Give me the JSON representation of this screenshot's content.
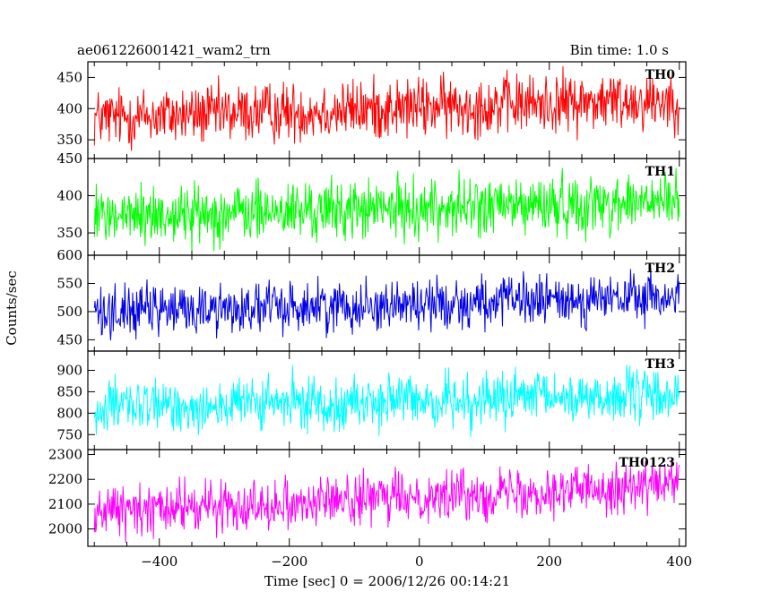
{
  "chart_data": {
    "type": "line",
    "title": "ae061226001421_wam2_trn",
    "bin_time": "Bin time: 1.0 s",
    "xlabel": "Time [sec] 0 = 2006/12/26 00:14:21",
    "ylabel": "Counts/sec",
    "xlim": [
      -510,
      410
    ],
    "x_start": -500,
    "x_end": 400,
    "x_step": 1,
    "xticks": [
      -400,
      -200,
      0,
      200,
      400
    ],
    "xtick_labels": [
      "−400",
      "−200",
      "0",
      "200",
      "400"
    ],
    "series": [
      {
        "name": "TH0",
        "color": "#ff0000",
        "ylim": [
          320,
          475
        ],
        "yticks": [
          350,
          400,
          450
        ],
        "mean_start": 385,
        "mean_end": 415,
        "amplitude": 48
      },
      {
        "name": "TH1",
        "color": "#00ff00",
        "ylim": [
          320,
          450
        ],
        "yticks": [
          350,
          400,
          450
        ],
        "mean_start": 372,
        "mean_end": 392,
        "amplitude": 40
      },
      {
        "name": "TH2",
        "color": "#0000e6",
        "ylim": [
          430,
          600
        ],
        "yticks": [
          450,
          500,
          550,
          600
        ],
        "mean_start": 500,
        "mean_end": 525,
        "amplitude": 45
      },
      {
        "name": "TH3",
        "color": "#00ffff",
        "ylim": [
          715,
          945
        ],
        "yticks": [
          750,
          800,
          850,
          900
        ],
        "mean_start": 812,
        "mean_end": 842,
        "amplitude": 62
      },
      {
        "name": "TH0123",
        "color": "#ff00ff",
        "ylim": [
          1930,
          2320
        ],
        "yticks": [
          2000,
          2100,
          2200,
          2300
        ],
        "mean_start": 2070,
        "mean_end": 2180,
        "amplitude": 100
      }
    ]
  }
}
